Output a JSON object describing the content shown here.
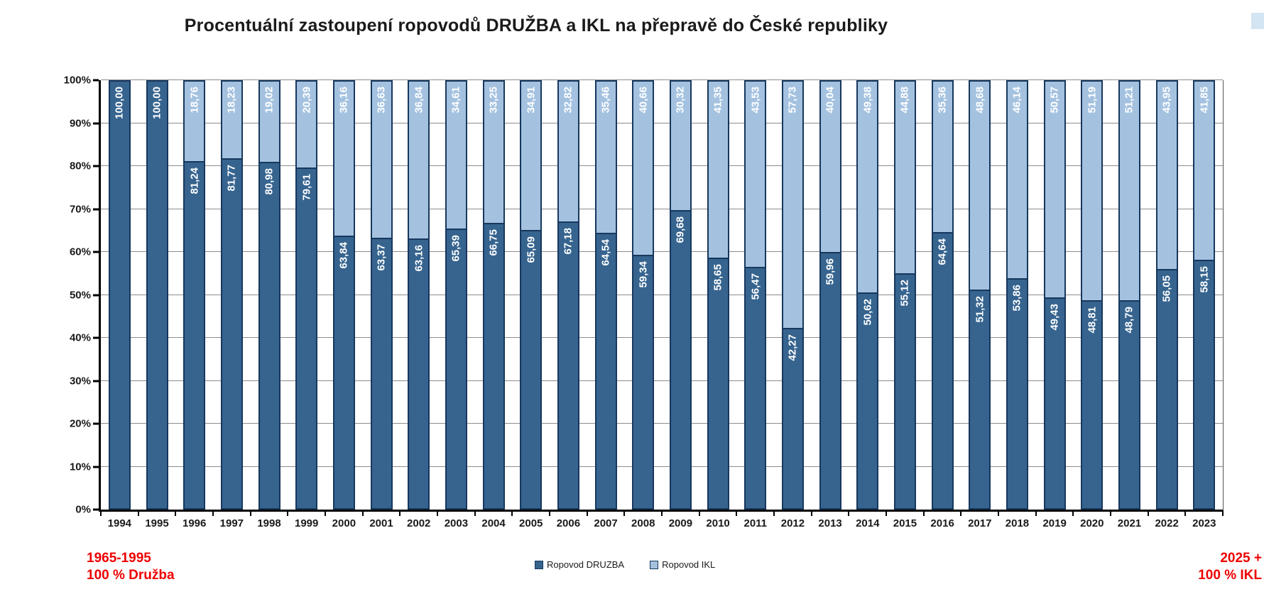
{
  "title": "Procentuální zastoupení ropovodů DRUŽBA a IKL na přepravě do České republiky",
  "chart_data": {
    "type": "bar",
    "stacked": true,
    "title": "Procentuální zastoupení ropovodů DRUŽBA a IKL na přepravě do České republiky",
    "categories": [
      "1994",
      "1995",
      "1996",
      "1997",
      "1998",
      "1999",
      "2000",
      "2001",
      "2002",
      "2003",
      "2004",
      "2005",
      "2006",
      "2007",
      "2008",
      "2009",
      "2010",
      "2011",
      "2012",
      "2013",
      "2014",
      "2015",
      "2016",
      "2017",
      "2018",
      "2019",
      "2020",
      "2021",
      "2022",
      "2023"
    ],
    "series": [
      {
        "name": "Ropovod DRUZBA",
        "color": "#36648F",
        "values": [
          100.0,
          100.0,
          81.24,
          81.77,
          80.98,
          79.61,
          63.84,
          63.37,
          63.16,
          65.39,
          66.75,
          65.09,
          67.18,
          64.54,
          59.34,
          69.68,
          58.65,
          56.47,
          42.27,
          59.96,
          50.62,
          55.12,
          64.64,
          51.32,
          53.86,
          49.43,
          48.81,
          48.79,
          56.05,
          58.15
        ],
        "labels": [
          "100,00",
          "100,00",
          "81,24",
          "81,77",
          "80,98",
          "79,61",
          "63,84",
          "63,37",
          "63,16",
          "65,39",
          "66,75",
          "65,09",
          "67,18",
          "64,54",
          "59,34",
          "69,68",
          "58,65",
          "56,47",
          "42,27",
          "59,96",
          "50,62",
          "55,12",
          "64,64",
          "51,32",
          "53,86",
          "49,43",
          "48,81",
          "48,79",
          "56,05",
          "58,15"
        ]
      },
      {
        "name": "Ropovod IKL",
        "color": "#A4C2E0",
        "values": [
          0,
          0,
          18.76,
          18.23,
          19.02,
          20.39,
          36.16,
          36.63,
          36.84,
          34.61,
          33.25,
          34.91,
          32.82,
          35.46,
          40.66,
          30.32,
          41.35,
          43.53,
          57.73,
          40.04,
          49.38,
          44.88,
          35.36,
          48.68,
          46.14,
          50.57,
          51.19,
          51.21,
          43.95,
          41.85
        ],
        "labels": [
          "",
          "",
          "18,76",
          "18,23",
          "19,02",
          "20,39",
          "36,16",
          "36,63",
          "36,84",
          "34,61",
          "33,25",
          "34,91",
          "32,82",
          "35,46",
          "40,66",
          "30,32",
          "41,35",
          "43,53",
          "57,73",
          "40,04",
          "49,38",
          "44,88",
          "35,36",
          "48,68",
          "46,14",
          "50,57",
          "51,19",
          "51,21",
          "43,95",
          "41,85"
        ]
      }
    ],
    "ylim": [
      0,
      100
    ],
    "y_ticks": [
      "0%",
      "10%",
      "20%",
      "30%",
      "40%",
      "50%",
      "60%",
      "70%",
      "80%",
      "90%",
      "100%"
    ],
    "grid": true,
    "legend_position": "bottom-center"
  },
  "annotations": {
    "color": "#EE0000",
    "left": {
      "line1": "1965-1995",
      "line2": "100 % Družba"
    },
    "right": {
      "line1": "2025 +",
      "line2": "100 % IKL"
    }
  },
  "decor": {
    "corner_accent_color": "#D3E4F3"
  }
}
